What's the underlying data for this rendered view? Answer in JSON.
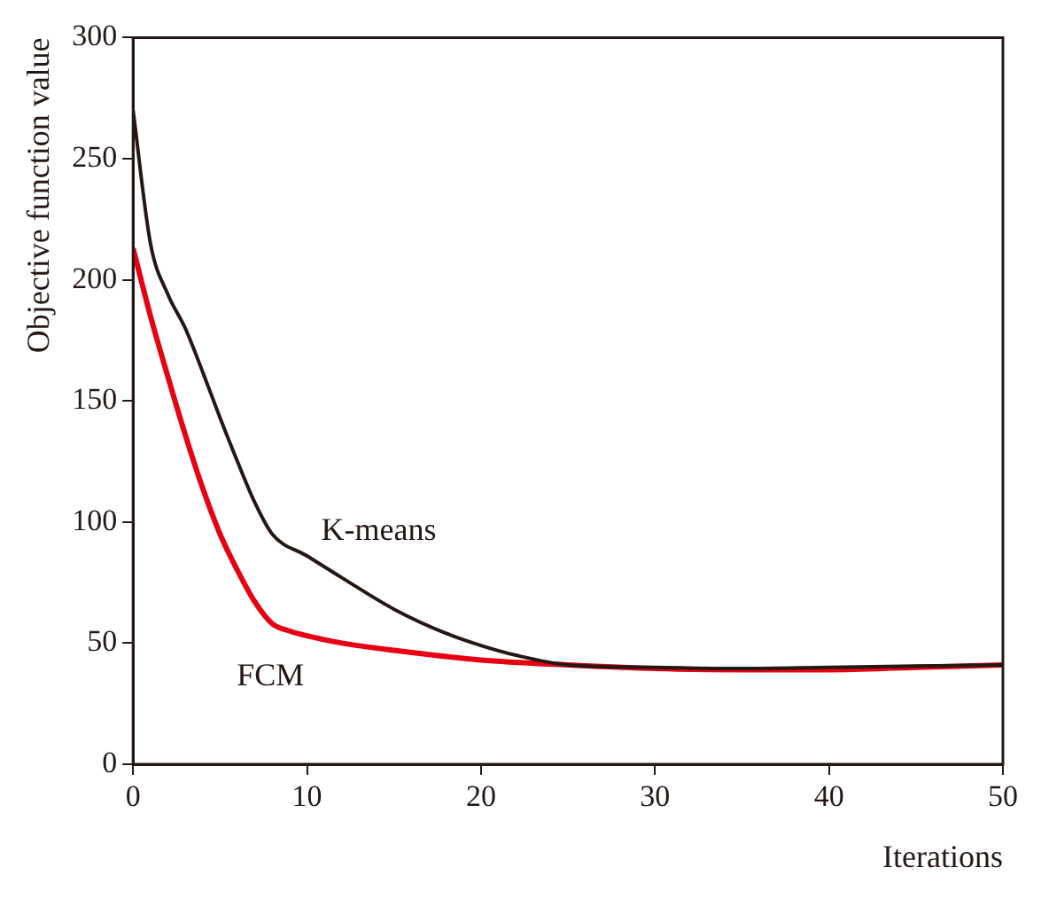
{
  "chart_data": {
    "type": "line",
    "xlabel": "Iterations",
    "ylabel": "Objective function value",
    "xlim": [
      0,
      50
    ],
    "xticks": [
      0,
      10,
      20,
      30,
      40,
      50
    ],
    "ylim": [
      0,
      300
    ],
    "yticks": [
      0,
      50,
      100,
      150,
      200,
      250,
      300
    ],
    "grid": false,
    "legend": false,
    "marker": "none",
    "line_style": "solid",
    "series": [
      {
        "name": "K-means",
        "color": "#231815",
        "x": [
          0,
          1,
          2,
          3,
          4,
          5,
          6,
          7,
          8,
          10,
          12,
          15,
          18,
          20,
          22,
          25,
          30,
          35,
          40,
          45,
          50
        ],
        "values": [
          270,
          215,
          194,
          180,
          162,
          143,
          125,
          108,
          95,
          86,
          77,
          64,
          54,
          49,
          45,
          41,
          40,
          39.5,
          40,
          40.5,
          41
        ]
      },
      {
        "name": "FCM",
        "color": "#e60012",
        "x": [
          0,
          1,
          2,
          3,
          4,
          5,
          6,
          7,
          8,
          9,
          10,
          12,
          15,
          20,
          25,
          30,
          35,
          40,
          45,
          50
        ],
        "values": [
          213,
          185,
          160,
          136,
          114,
          95,
          80,
          67,
          58,
          55,
          53,
          50,
          47,
          43,
          41,
          39.5,
          39,
          39,
          40,
          41
        ]
      }
    ]
  }
}
